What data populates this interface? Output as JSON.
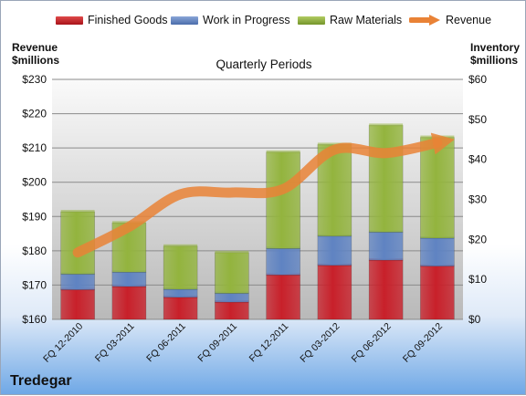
{
  "chart_data": {
    "type": "bar",
    "stacked": true,
    "subtitle": "Quarterly Periods",
    "company": "Tredegar",
    "categories": [
      "FQ 12-2010",
      "FQ 03-2011",
      "FQ 06-2011",
      "FQ 09-2011",
      "FQ 12-2011",
      "FQ 03-2012",
      "FQ 06-2012",
      "FQ 09-2012"
    ],
    "left_axis": {
      "label_line1": "Revenue",
      "label_line2": "$millions",
      "min": 160,
      "max": 230,
      "ticks": [
        "$160",
        "$170",
        "$180",
        "$190",
        "$200",
        "$210",
        "$220",
        "$230"
      ]
    },
    "right_axis": {
      "label_line1": "Inventory",
      "label_line2": "$millions",
      "min": 0,
      "max": 60,
      "ticks": [
        "$0",
        "$10",
        "$20",
        "$30",
        "$40",
        "$50",
        "$60"
      ]
    },
    "grid": true,
    "legend_position": "top",
    "series": [
      {
        "name": "Finished Goods",
        "axis": "right",
        "color": "#c8202a",
        "values": [
          7.4,
          8.2,
          5.5,
          4.3,
          11.1,
          13.5,
          14.8,
          13.3
        ]
      },
      {
        "name": "Work in Progress",
        "axis": "right",
        "color": "#5f83c2",
        "values": [
          3.9,
          3.6,
          2.0,
          2.2,
          6.6,
          7.3,
          7.0,
          7.0
        ]
      },
      {
        "name": "Raw Materials",
        "axis": "right",
        "color": "#93b43e",
        "values": [
          15.6,
          12.3,
          10.8,
          10.2,
          24.1,
          22.9,
          26.7,
          25.2
        ]
      },
      {
        "name": "Revenue",
        "axis": "left",
        "type": "line",
        "color": "#e98236",
        "values": [
          179.5,
          187.0,
          196.5,
          197.0,
          198.0,
          209.5,
          208.5,
          211.5
        ]
      }
    ]
  }
}
